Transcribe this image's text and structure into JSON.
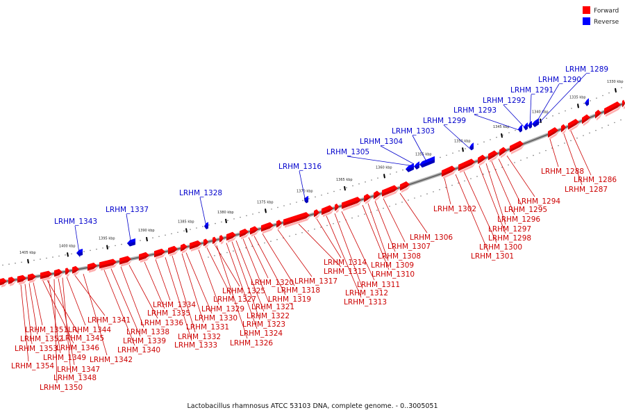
{
  "legend": [
    {
      "name": "Forward",
      "color": "#ff0000"
    },
    {
      "name": "Reverse",
      "color": "#0000ff"
    }
  ],
  "caption": "Lactobacillus rhamnosus ATCC 53103 DNA, complete genome. - 0..3005051",
  "ruler_ticks": [
    "1405 kbp",
    "1400 kbp",
    "1395 kbp",
    "1390 kbp",
    "1385 kbp",
    "1380 kbp",
    "1375 kbp",
    "1370 kbp",
    "1365 kbp",
    "1360 kbp",
    "1355 kbp",
    "1350 kbp",
    "1345 kbp",
    "1340 kbp",
    "1335 kbp",
    "1330 kbp"
  ],
  "reverse_genes": [
    "LRHM_1343",
    "LRHM_1337",
    "LRHM_1328",
    "LRHM_1316",
    "LRHM_1305",
    "LRHM_1304",
    "LRHM_1303",
    "LRHM_1299",
    "LRHM_1293",
    "LRHM_1292",
    "LRHM_1291",
    "LRHM_1290",
    "LRHM_1289"
  ],
  "forward_genes": [
    "LRHM_1354",
    "LRHM_1353",
    "LRHM_1352",
    "LRHM_1351",
    "LRHM_1350",
    "LRHM_1349",
    "LRHM_1348",
    "LRHM_1347",
    "LRHM_1346",
    "LRHM_1345",
    "LRHM_1344",
    "LRHM_1342",
    "LRHM_1341",
    "LRHM_1340",
    "LRHM_1339",
    "LRHM_1338",
    "LRHM_1336",
    "LRHM_1335",
    "LRHM_1334",
    "LRHM_1333",
    "LRHM_1332",
    "LRHM_1331",
    "LRHM_1330",
    "LRHM_1329",
    "LRHM_1327",
    "LRHM_1326",
    "LRHM_1325",
    "LRHM_1324",
    "LRHM_1323",
    "LRHM_1322",
    "LRHM_1321",
    "LRHM_1320",
    "LRHM_1319",
    "LRHM_1318",
    "LRHM_1317",
    "LRHM_1315",
    "LRHM_1314",
    "LRHM_1313",
    "LRHM_1312",
    "LRHM_1311",
    "LRHM_1310",
    "LRHM_1309",
    "LRHM_1308",
    "LRHM_1307",
    "LRHM_1306",
    "LRHM_1302",
    "LRHM_1301",
    "LRHM_1300",
    "LRHM_1298",
    "LRHM_1297",
    "LRHM_1296",
    "LRHM_1295",
    "LRHM_1294",
    "LRHM_1288",
    "LRHM_1287",
    "LRHM_1286"
  ]
}
